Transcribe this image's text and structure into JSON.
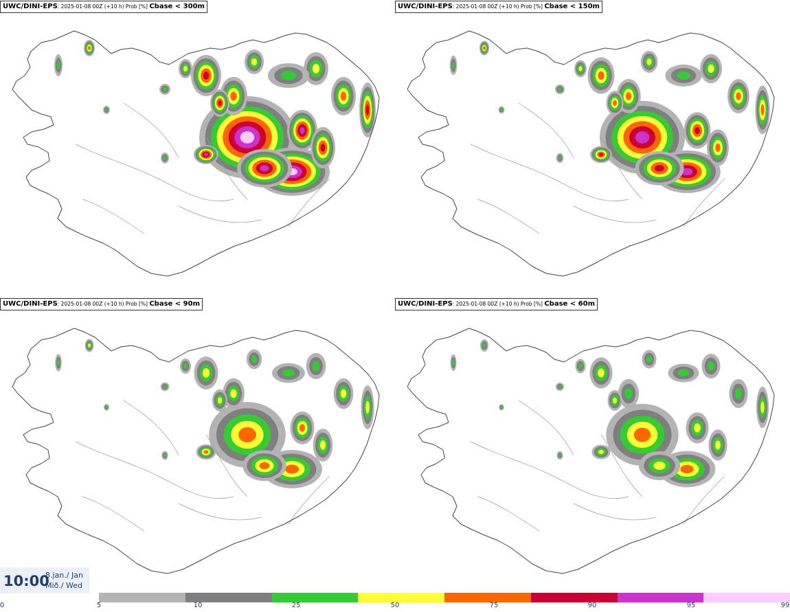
{
  "panels": [
    {
      "model": "UWC/DINI-EPS",
      "meta": ": 2025-01-08 00Z (+10 h) Prob [%] ",
      "variable": "Cbase < 300m",
      "intensity": 1.0
    },
    {
      "model": "UWC/DINI-EPS",
      "meta": ": 2025-01-08 00Z (+10 h) Prob [%] ",
      "variable": "Cbase < 150m",
      "intensity": 0.75
    },
    {
      "model": "UWC/DINI-EPS",
      "meta": ": 2025-01-08 00Z (+10 h) Prob [%] ",
      "variable": "Cbase < 90m",
      "intensity": 0.55
    },
    {
      "model": "UWC/DINI-EPS",
      "meta": ": 2025-01-08 00Z (+10 h) Prob [%] ",
      "variable": "Cbase < 60m",
      "intensity": 0.45
    }
  ],
  "time": {
    "hour": "10:00",
    "date_line1": "8.jan./ Jan",
    "date_line2": "Mið./ Wed"
  },
  "legend": {
    "ticks": [
      "0",
      "5",
      "10",
      "25",
      "50",
      "75",
      "90",
      "95",
      "99"
    ],
    "colors": [
      "#b3b3b3",
      "#7f7f7f",
      "#33cc33",
      "#ffff33",
      "#ff6600",
      "#cc0033",
      "#cc33cc",
      "#ffccff"
    ]
  }
}
